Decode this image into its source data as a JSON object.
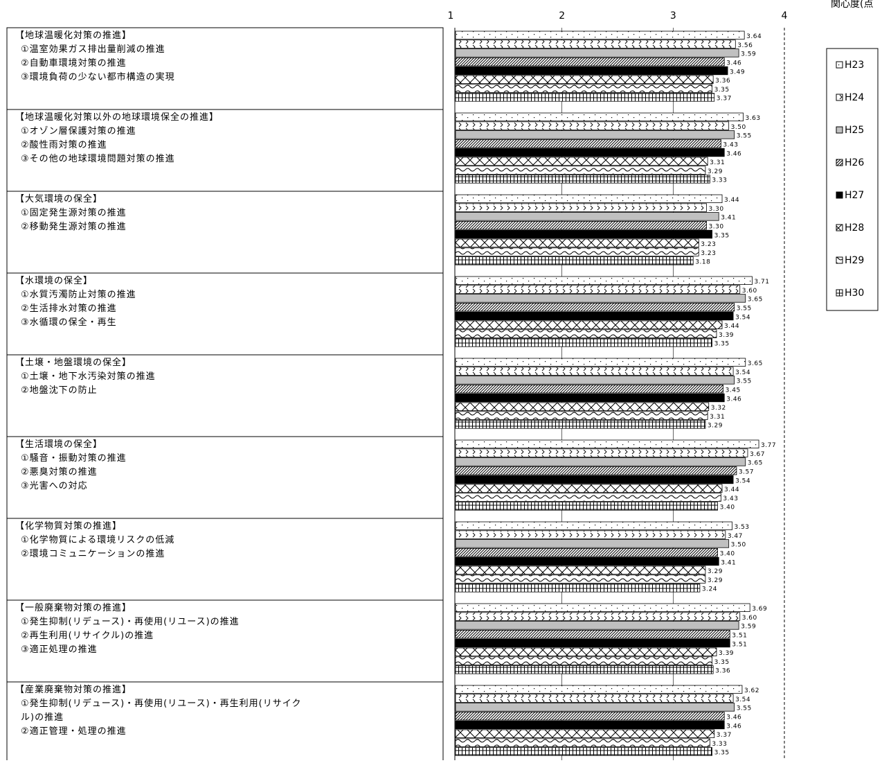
{
  "chart_data": {
    "type": "bar",
    "orientation": "horizontal",
    "xlabel": "関心度(点",
    "xlim": [
      1,
      5
    ],
    "xticks": [
      "1",
      "2",
      "3",
      "4",
      "5"
    ],
    "reference_line_x": 4,
    "legend_placement": "right",
    "series": [
      {
        "name": "H23",
        "pattern": "dots",
        "color": "#ffffff"
      },
      {
        "name": "H24",
        "pattern": "ticks",
        "color": "#ffffff"
      },
      {
        "name": "H25",
        "pattern": "solid",
        "color": "#c0c0c0"
      },
      {
        "name": "H26",
        "pattern": "diagonal",
        "color": "#ffffff"
      },
      {
        "name": "H27",
        "pattern": "solid",
        "color": "#000000"
      },
      {
        "name": "H28",
        "pattern": "crosshatch",
        "color": "#ffffff"
      },
      {
        "name": "H29",
        "pattern": "wave",
        "color": "#ffffff"
      },
      {
        "name": "H30",
        "pattern": "grid",
        "color": "#ffffff"
      }
    ],
    "groups": [
      {
        "lines": [
          "【地球温暖化対策の推進】",
          "①温室効果ガス排出量削減の推進",
          "②自動車環境対策の推進",
          "③環境負荷の少ない都市構造の実現"
        ],
        "values": [
          3.64,
          3.56,
          3.59,
          3.46,
          3.49,
          3.36,
          3.35,
          3.37
        ],
        "labels": [
          "3.64",
          "3.56",
          "3.59",
          "3.46",
          "3.49",
          "3.36",
          "3.35",
          "3.37"
        ]
      },
      {
        "lines": [
          "【地球温暖化対策以外の地球環境保全の推進】",
          "①オゾン層保護対策の推進",
          "②酸性雨対策の推進",
          "③その他の地球環境問題対策の推進"
        ],
        "values": [
          3.63,
          3.5,
          3.55,
          3.43,
          3.46,
          3.31,
          3.29,
          3.33
        ],
        "labels": [
          "3.63",
          "3.50",
          "3.55",
          "3.43",
          "3.46",
          "3.31",
          "3.29",
          "3.33"
        ]
      },
      {
        "lines": [
          "【大気環境の保全】",
          "①固定発生源対策の推進",
          "②移動発生源対策の推進"
        ],
        "values": [
          3.44,
          3.3,
          3.41,
          3.3,
          3.35,
          3.23,
          3.23,
          3.18
        ],
        "labels": [
          "3.44",
          "3.30",
          "3.41",
          "3.30",
          "3.35",
          "3.23",
          "3.23",
          "3.18"
        ]
      },
      {
        "lines": [
          "【水環境の保全】",
          "①水質汚濁防止対策の推進",
          "②生活排水対策の推進",
          "③水循環の保全・再生"
        ],
        "values": [
          3.71,
          3.6,
          3.65,
          3.55,
          3.54,
          3.44,
          3.39,
          3.35
        ],
        "labels": [
          "3.71",
          "3.60",
          "3.65",
          "3.55",
          "3.54",
          "3.44",
          "3.39",
          "3.35"
        ]
      },
      {
        "lines": [
          "【土壌・地盤環境の保全】",
          "①土壌・地下水汚染対策の推進",
          "②地盤沈下の防止"
        ],
        "values": [
          3.65,
          3.54,
          3.55,
          3.45,
          3.46,
          3.32,
          3.31,
          3.29
        ],
        "labels": [
          "3.65",
          "3.54",
          "3.55",
          "3.45",
          "3.46",
          "3.32",
          "3.31",
          "3.29"
        ]
      },
      {
        "lines": [
          "【生活環境の保全】",
          "①騒音・振動対策の推進",
          "②悪臭対策の推進",
          "③光害への対応"
        ],
        "values": [
          3.77,
          3.67,
          3.65,
          3.57,
          3.54,
          3.44,
          3.43,
          3.4
        ],
        "labels": [
          "3.77",
          "3.67",
          "3.65",
          "3.57",
          "3.54",
          "3.44",
          "3.43",
          "3.40"
        ]
      },
      {
        "lines": [
          "【化学物質対策の推進】",
          "①化学物質による環境リスクの低減",
          "②環境コミュニケーションの推進"
        ],
        "values": [
          3.53,
          3.47,
          3.5,
          3.4,
          3.41,
          3.29,
          3.29,
          3.24
        ],
        "labels": [
          "3.53",
          "3.47",
          "3.50",
          "3.40",
          "3.41",
          "3.29",
          "3.29",
          "3.24"
        ]
      },
      {
        "lines": [
          "【一般廃棄物対策の推進】",
          "①発生抑制(リデュース)・再使用(リユース)の推進",
          "②再生利用(リサイクル)の推進",
          "③適正処理の推進"
        ],
        "values": [
          3.69,
          3.6,
          3.59,
          3.51,
          3.51,
          3.39,
          3.35,
          3.36
        ],
        "labels": [
          "3.69",
          "3.60",
          "3.59",
          "3.51",
          "3.51",
          "3.39",
          "3.35",
          "3.36"
        ]
      },
      {
        "lines": [
          "【産業廃棄物対策の推進】",
          "①発生抑制(リデュース)・再使用(リユース)・再生利用(リサイク",
          "ル)の推進",
          "②適正管理・処理の推進"
        ],
        "values": [
          3.62,
          3.54,
          3.55,
          3.46,
          3.46,
          3.37,
          3.33,
          3.35
        ],
        "labels": [
          "3.62",
          "3.54",
          "3.55",
          "3.46",
          "3.46",
          "3.37",
          "3.33",
          "3.35"
        ]
      }
    ]
  }
}
